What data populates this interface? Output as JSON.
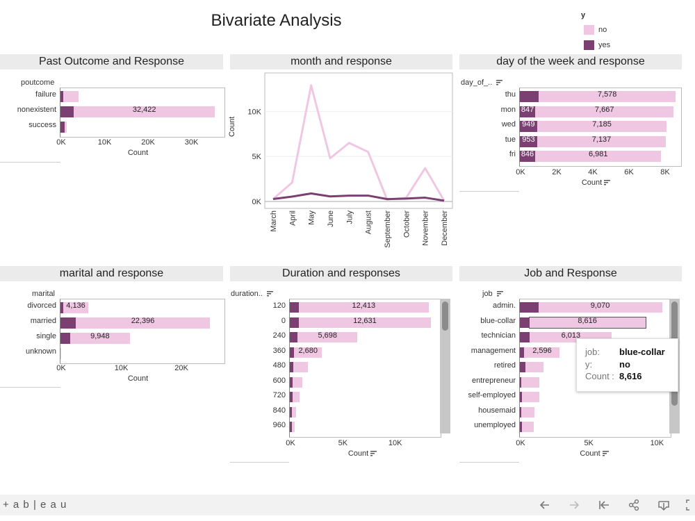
{
  "dashboard": {
    "title": "Bivariate Analysis",
    "legend": {
      "title": "y",
      "items": [
        {
          "label": "no",
          "color": "#f0c7e3"
        },
        {
          "label": "yes",
          "color": "#7b3f72"
        }
      ]
    }
  },
  "colors": {
    "no": "#f0c7e3",
    "yes": "#7b3f72",
    "header_bg": "#ebebeb"
  },
  "panels": {
    "poutcome": {
      "title": "Past Outcome and Response",
      "field": "poutcome",
      "xlabel": "Count",
      "ticks": [
        "0K",
        "10K",
        "20K",
        "30K"
      ],
      "rows": [
        {
          "label": "failure"
        },
        {
          "label": "nonexistent",
          "value_label": "32,422"
        },
        {
          "label": "success"
        }
      ]
    },
    "month": {
      "title": "month and response",
      "ylabel": "Count",
      "yticks": [
        "0K",
        "5K",
        "10K"
      ],
      "categories": [
        "March",
        "April",
        "May",
        "June",
        "July",
        "August",
        "September",
        "October",
        "November",
        "December"
      ]
    },
    "dow": {
      "title": "day of the week and response",
      "field": "day_of_..",
      "xlabel": "Count",
      "ticks": [
        "0K",
        "2K",
        "4K",
        "6K",
        "8K"
      ],
      "rows": [
        {
          "label": "thu",
          "yes_label": "",
          "no_label": "7,578"
        },
        {
          "label": "mon",
          "yes_label": "847",
          "no_label": "7,667"
        },
        {
          "label": "wed",
          "yes_label": "949",
          "no_label": "7,185"
        },
        {
          "label": "tue",
          "yes_label": "953",
          "no_label": "7,137"
        },
        {
          "label": "fri",
          "yes_label": "846",
          "no_label": "6,981"
        }
      ]
    },
    "marital": {
      "title": "marital and response",
      "field": "marital",
      "xlabel": "Count",
      "ticks": [
        "0K",
        "10K",
        "20K"
      ],
      "rows": [
        {
          "label": "divorced",
          "no_label": "4,136"
        },
        {
          "label": "married",
          "no_label": "22,396"
        },
        {
          "label": "single",
          "no_label": "9,948"
        },
        {
          "label": "unknown",
          "no_label": ""
        }
      ]
    },
    "duration": {
      "title": "Duration and responses",
      "field": "duration..",
      "xlabel": "Count",
      "ticks": [
        "0K",
        "5K",
        "10K"
      ],
      "rows": [
        {
          "label": "120",
          "no_label": "12,413"
        },
        {
          "label": "0",
          "no_label": "12,631"
        },
        {
          "label": "240",
          "no_label": "5,698"
        },
        {
          "label": "360",
          "no_label": "2,680"
        },
        {
          "label": "480",
          "no_label": ""
        },
        {
          "label": "600",
          "no_label": ""
        },
        {
          "label": "720",
          "no_label": ""
        },
        {
          "label": "840",
          "no_label": ""
        },
        {
          "label": "960",
          "no_label": ""
        }
      ]
    },
    "job": {
      "title": "Job and Response",
      "field": "job",
      "xlabel": "Count",
      "ticks": [
        "0K",
        "5K",
        "10K"
      ],
      "rows": [
        {
          "label": "admin.",
          "no_label": "9,070"
        },
        {
          "label": "blue-collar",
          "no_label": "8,616"
        },
        {
          "label": "technician",
          "no_label": "6,013"
        },
        {
          "label": "management",
          "no_label": "2,596"
        },
        {
          "label": "retired",
          "no_label": ""
        },
        {
          "label": "entrepreneur",
          "no_label": ""
        },
        {
          "label": "self-employed",
          "no_label": ""
        },
        {
          "label": "housemaid",
          "no_label": ""
        },
        {
          "label": "unemployed",
          "no_label": ""
        }
      ],
      "tooltip": {
        "k1": "job:",
        "v1": "blue-collar",
        "k2": "y:",
        "v2": "no",
        "k3": "Count :",
        "v3": "8,616"
      }
    }
  },
  "footer": {
    "brand": "+ a b | e a u"
  },
  "chart_data": [
    {
      "type": "bar",
      "title": "Past Outcome and Response",
      "xlabel": "Count",
      "ylabel": "poutcome",
      "categories": [
        "failure",
        "nonexistent",
        "success"
      ],
      "xlim": [
        0,
        36000
      ],
      "series": [
        {
          "name": "yes",
          "values": [
            600,
            3100,
            900
          ]
        },
        {
          "name": "no",
          "values": [
            3600,
            32422,
            500
          ]
        }
      ]
    },
    {
      "type": "line",
      "title": "month and response",
      "ylabel": "Count",
      "ylim": [
        0,
        13500
      ],
      "categories": [
        "March",
        "April",
        "May",
        "June",
        "July",
        "August",
        "September",
        "October",
        "November",
        "December"
      ],
      "series": [
        {
          "name": "no",
          "values": [
            270,
            2100,
            12900,
            4800,
            6500,
            5500,
            210,
            400,
            3700,
            90
          ]
        },
        {
          "name": "yes",
          "values": [
            270,
            540,
            890,
            560,
            650,
            650,
            260,
            320,
            420,
            90
          ]
        }
      ]
    },
    {
      "type": "bar",
      "title": "day of the week and response",
      "xlabel": "Count",
      "ylabel": "day_of_..",
      "categories": [
        "thu",
        "mon",
        "wed",
        "tue",
        "fri"
      ],
      "xlim": [
        0,
        8500
      ],
      "series": [
        {
          "name": "yes",
          "values": [
            1045,
            847,
            949,
            953,
            846
          ]
        },
        {
          "name": "no",
          "values": [
            7578,
            7667,
            7185,
            7137,
            6981
          ]
        }
      ]
    },
    {
      "type": "bar",
      "title": "marital and response",
      "xlabel": "Count",
      "ylabel": "marital",
      "categories": [
        "divorced",
        "married",
        "single",
        "unknown"
      ],
      "xlim": [
        0,
        26000
      ],
      "series": [
        {
          "name": "yes",
          "values": [
            480,
            2500,
            1600,
            10
          ]
        },
        {
          "name": "no",
          "values": [
            4136,
            22396,
            9948,
            70
          ]
        }
      ]
    },
    {
      "type": "bar",
      "title": "Duration and responses",
      "xlabel": "Count",
      "ylabel": "duration..",
      "categories": [
        "120",
        "0",
        "240",
        "360",
        "480",
        "600",
        "720",
        "840",
        "960"
      ],
      "xlim": [
        0,
        14000
      ],
      "series": [
        {
          "name": "yes",
          "values": [
            850,
            850,
            750,
            400,
            300,
            280,
            250,
            220,
            200
          ]
        },
        {
          "name": "no",
          "values": [
            12413,
            12631,
            5698,
            2680,
            1400,
            900,
            650,
            400,
            250
          ]
        }
      ]
    },
    {
      "type": "bar",
      "title": "Job and Response",
      "xlabel": "Count",
      "ylabel": "job",
      "categories": [
        "admin.",
        "blue-collar",
        "technician",
        "management",
        "retired",
        "entrepreneur",
        "self-employed",
        "housemaid",
        "unemployed"
      ],
      "xlim": [
        0,
        11000
      ],
      "series": [
        {
          "name": "yes",
          "values": [
            1350,
            640,
            730,
            330,
            430,
            120,
            150,
            110,
            150
          ]
        },
        {
          "name": "no",
          "values": [
            9070,
            8616,
            6013,
            2596,
            1290,
            1330,
            1270,
            950,
            870
          ]
        }
      ]
    }
  ]
}
